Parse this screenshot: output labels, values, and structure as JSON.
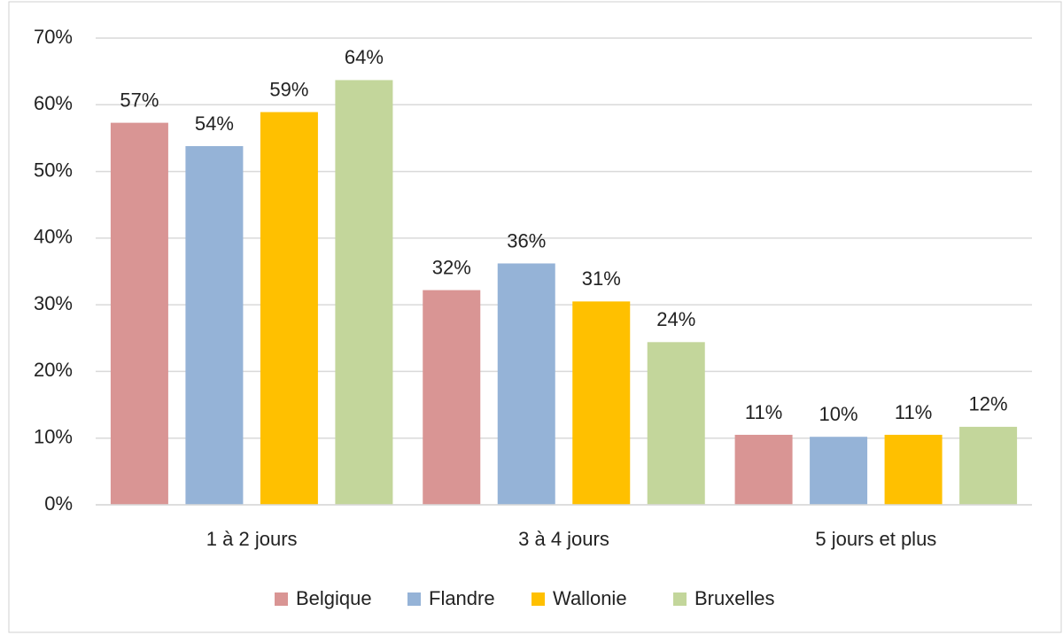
{
  "chart_data": {
    "type": "bar",
    "categories": [
      "1 à 2 jours",
      "3 à 4 jours",
      "5 jours et plus"
    ],
    "series": [
      {
        "name": "Belgique",
        "color": "#d99594",
        "values": [
          57.3,
          32.2,
          10.5
        ],
        "value_labels": [
          "57%",
          "32%",
          "11%"
        ]
      },
      {
        "name": "Flandre",
        "color": "#95b3d7",
        "values": [
          53.8,
          36.2,
          10.2
        ],
        "value_labels": [
          "54%",
          "36%",
          "10%"
        ]
      },
      {
        "name": "Wallonie",
        "color": "#ffc000",
        "values": [
          58.9,
          30.5,
          10.5
        ],
        "value_labels": [
          "59%",
          "31%",
          "11%"
        ]
      },
      {
        "name": "Bruxelles",
        "color": "#c3d69b",
        "values": [
          63.7,
          24.4,
          11.7
        ],
        "value_labels": [
          "64%",
          "24%",
          "12%"
        ]
      }
    ],
    "ylim": [
      0,
      70
    ],
    "yticks": [
      {
        "value": 0,
        "label": "0%"
      },
      {
        "value": 10,
        "label": "10%"
      },
      {
        "value": 20,
        "label": "20%"
      },
      {
        "value": 30,
        "label": "30%"
      },
      {
        "value": 40,
        "label": "40%"
      },
      {
        "value": 50,
        "label": "50%"
      },
      {
        "value": 60,
        "label": "60%"
      },
      {
        "value": 70,
        "label": "70%"
      }
    ],
    "grid": true,
    "legend": "bottom"
  }
}
